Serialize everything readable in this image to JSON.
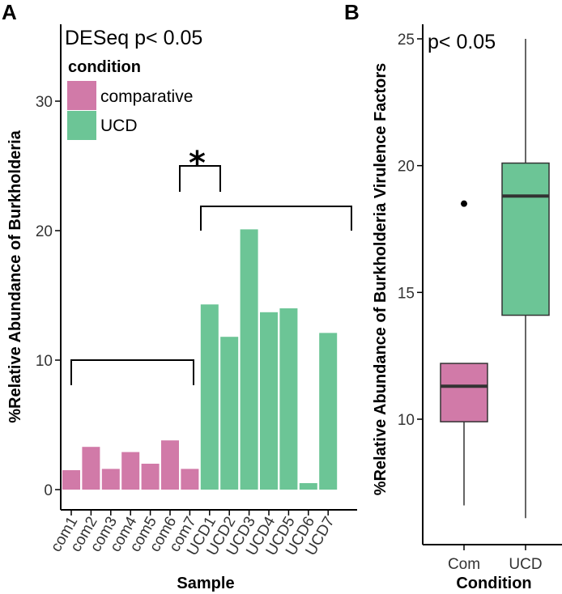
{
  "colors": {
    "comparative": "#d17aa8",
    "ucd": "#6cc596",
    "axis": "#000000",
    "median": "#333333"
  },
  "chart_data": [
    {
      "panel": "A",
      "type": "bar",
      "title": "",
      "annotation": "DESeq p< 0.05",
      "significance_marker": "*",
      "xlabel": "Sample",
      "ylabel": "%Relative Abundance of Burkholderia",
      "ylim": [
        -2,
        34
      ],
      "yticks": [
        0,
        10,
        20,
        30
      ],
      "legend": {
        "title": "condition",
        "position": "top-left",
        "entries": [
          {
            "label": "comparative",
            "group": "comparative"
          },
          {
            "label": "UCD",
            "group": "ucd"
          }
        ]
      },
      "categories": [
        "com1",
        "com2",
        "com3",
        "com4",
        "com5",
        "com6",
        "com7",
        "UCD1",
        "UCD2",
        "UCD3",
        "UCD4",
        "UCD5",
        "UCD6",
        "UCD7"
      ],
      "groups": [
        "comparative",
        "comparative",
        "comparative",
        "comparative",
        "comparative",
        "comparative",
        "comparative",
        "ucd",
        "ucd",
        "ucd",
        "ucd",
        "ucd",
        "ucd",
        "ucd"
      ],
      "values": [
        1.5,
        3.3,
        1.6,
        2.9,
        2.0,
        3.8,
        1.6,
        14.3,
        11.8,
        20.1,
        13.7,
        14.0,
        0.5,
        12.1
      ]
    },
    {
      "panel": "B",
      "type": "box",
      "title": "",
      "annotation": "p< 0.05",
      "xlabel": "Condition",
      "ylabel": "%Relative Abundance of Burkholderia Virulence Factors",
      "ylim": [
        5,
        26
      ],
      "yticks": [
        10,
        15,
        20,
        25
      ],
      "categories": [
        "Com",
        "UCD"
      ],
      "groups": [
        "comparative",
        "ucd"
      ],
      "boxes": [
        {
          "min": 6.6,
          "q1": 9.9,
          "median": 11.3,
          "q3": 12.2,
          "max": 12.2,
          "outliers": [
            18.5
          ]
        },
        {
          "min": 6.1,
          "q1": 14.1,
          "median": 18.8,
          "q3": 20.1,
          "max": 25.0,
          "outliers": []
        }
      ]
    }
  ]
}
